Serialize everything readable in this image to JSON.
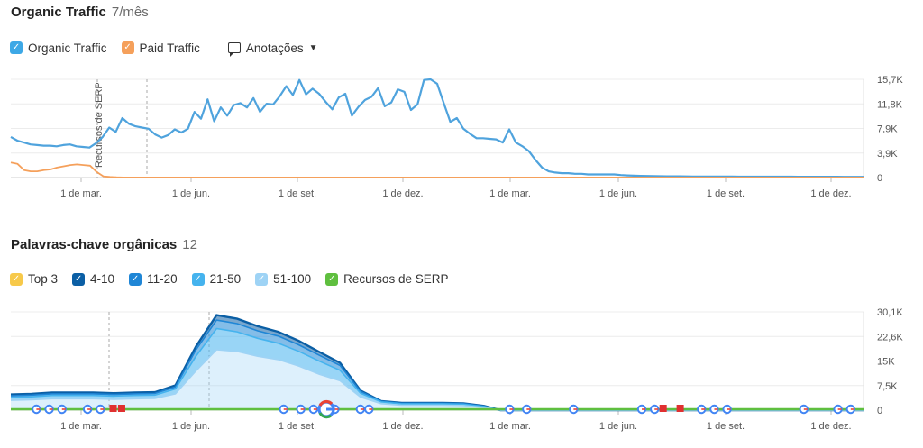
{
  "traffic_section": {
    "title": "Organic Traffic",
    "subtitle": "7/mês",
    "legend": [
      {
        "label": "Organic Traffic",
        "color": "#3da8e6"
      },
      {
        "label": "Paid Traffic",
        "color": "#f5a05b"
      }
    ],
    "annotations_label": "Anotações"
  },
  "keywords_section": {
    "title": "Palavras-chave orgânicas",
    "subtitle": "12",
    "legend": [
      {
        "label": "Top 3",
        "color": "#f7c94a"
      },
      {
        "label": "4-10",
        "color": "#0b5fa5"
      },
      {
        "label": "11-20",
        "color": "#1f86d6"
      },
      {
        "label": "21-50",
        "color": "#45b3ee"
      },
      {
        "label": "51-100",
        "color": "#9ed3f5"
      },
      {
        "label": "Recursos de SERP",
        "color": "#5fbf3f"
      }
    ]
  },
  "chart_data": [
    {
      "type": "line",
      "x_ticks": [
        "1 de mar.",
        "1 de jun.",
        "1 de set.",
        "1 de dez.",
        "1 de mar.",
        "1 de jun.",
        "1 de set.",
        "1 de dez."
      ],
      "y_ticks": [
        "0",
        "3,9K",
        "7,9K",
        "11,8K",
        "15,7K"
      ],
      "ylim": [
        0,
        15700
      ],
      "marker_label": "Recursos de SERP",
      "series": [
        {
          "name": "Organic Traffic",
          "color": "#4fa3dd",
          "values": [
            6500,
            5900,
            5600,
            5300,
            5200,
            5100,
            5100,
            5000,
            5200,
            5300,
            5000,
            4900,
            4800,
            5500,
            6500,
            8000,
            7300,
            9500,
            8600,
            8200,
            8000,
            7800,
            6900,
            6400,
            6800,
            7700,
            7200,
            7800,
            10500,
            9400,
            12500,
            9000,
            11200,
            9900,
            11600,
            11900,
            11200,
            12700,
            10500,
            11800,
            11700,
            13000,
            14600,
            13200,
            15600,
            13300,
            14200,
            13400,
            12100,
            10900,
            12800,
            13400,
            9900,
            11300,
            12400,
            12900,
            14300,
            11400,
            12000,
            14100,
            13700,
            10800,
            11700,
            15600,
            15700,
            15000,
            11900,
            8900,
            9500,
            7800,
            7000,
            6300,
            6300,
            6200,
            6100,
            5600,
            7700,
            5600,
            5000,
            4200,
            2800,
            1600,
            1000,
            800,
            700,
            700,
            600,
            600,
            500,
            500,
            500,
            500,
            500,
            400,
            350,
            300,
            280,
            260,
            240,
            220,
            200,
            200,
            200,
            190,
            180,
            180,
            170,
            170,
            160,
            160,
            160,
            150,
            150,
            150,
            150,
            140,
            140,
            140,
            140,
            140,
            130,
            130,
            130,
            130,
            130,
            130,
            130,
            120,
            120,
            120,
            120
          ]
        },
        {
          "name": "Paid Traffic",
          "color": "#f5a05b",
          "values": [
            2400,
            2200,
            1200,
            1000,
            1000,
            1200,
            1300,
            1600,
            1800,
            2000,
            2100,
            2000,
            1900,
            900,
            200,
            100,
            50,
            20,
            20,
            20,
            20,
            20,
            20,
            20,
            20,
            20,
            20,
            20,
            20,
            20,
            20,
            20,
            20,
            20,
            20,
            20,
            20,
            20,
            20,
            20,
            20,
            20,
            20,
            20,
            20,
            20,
            20,
            20,
            20,
            20,
            20,
            20,
            20,
            20,
            20,
            20,
            20,
            20,
            20,
            20,
            20,
            20,
            20,
            20,
            20,
            20,
            20,
            20,
            20,
            20,
            20,
            20,
            20,
            20,
            20,
            20,
            20,
            20,
            20,
            20,
            20,
            20,
            20,
            20,
            20,
            20,
            20,
            20,
            20,
            20,
            20,
            20,
            20,
            20,
            20,
            20,
            20,
            20,
            20,
            20,
            20,
            20,
            20,
            20,
            20,
            20,
            20,
            20,
            20,
            20,
            20,
            20,
            20,
            20,
            20,
            20,
            20,
            20,
            20,
            20,
            20,
            20,
            20,
            20,
            20,
            20,
            20,
            20,
            20,
            20
          ]
        }
      ]
    },
    {
      "type": "area",
      "x_ticks": [
        "1 de mar.",
        "1 de jun.",
        "1 de set.",
        "1 de dez.",
        "1 de mar.",
        "1 de jun.",
        "1 de set.",
        "1 de dez."
      ],
      "y_ticks": [
        "0",
        "7,5K",
        "15K",
        "22,6K",
        "30,1K"
      ],
      "ylim": [
        0,
        30100
      ],
      "stacked": true,
      "series": [
        {
          "name": "51-100",
          "color": "#9ed3f5",
          "values": [
            3000,
            3200,
            3500,
            3500,
            3500,
            3300,
            3500,
            3600,
            5000,
            12000,
            18500,
            18000,
            16500,
            15500,
            13500,
            11000,
            9000,
            4000,
            2000,
            1500,
            1500,
            1500,
            1400,
            800,
            0,
            0,
            0,
            0,
            0,
            0,
            0,
            0,
            0,
            0,
            0,
            0,
            0,
            0,
            0,
            0,
            0,
            0,
            0,
            0,
            0,
            0,
            0
          ]
        },
        {
          "name": "21-50",
          "color": "#45b3ee",
          "values": [
            900,
            900,
            1000,
            1000,
            1000,
            1000,
            1000,
            1000,
            1500,
            4500,
            6500,
            6000,
            5500,
            5000,
            4500,
            4000,
            3200,
            1200,
            500,
            400,
            400,
            400,
            400,
            300,
            0,
            0,
            0,
            0,
            0,
            0,
            0,
            0,
            0,
            0,
            0,
            0,
            0,
            0,
            0,
            0,
            0,
            0,
            0,
            0,
            0,
            0,
            0
          ]
        },
        {
          "name": "11-20",
          "color": "#1f86d6",
          "values": [
            500,
            500,
            500,
            500,
            500,
            500,
            500,
            500,
            600,
            2000,
            2600,
            2500,
            2300,
            2200,
            2000,
            1800,
            1500,
            500,
            200,
            200,
            200,
            200,
            200,
            100,
            0,
            0,
            0,
            0,
            0,
            0,
            0,
            0,
            0,
            0,
            0,
            0,
            0,
            0,
            0,
            0,
            0,
            0,
            0,
            0,
            0,
            0,
            0
          ]
        },
        {
          "name": "4-10",
          "color": "#0b5fa5",
          "values": [
            400,
            400,
            400,
            400,
            400,
            400,
            400,
            400,
            500,
            1000,
            1500,
            1500,
            1400,
            1300,
            1200,
            1000,
            800,
            300,
            100,
            100,
            100,
            100,
            100,
            100,
            0,
            0,
            0,
            0,
            0,
            0,
            0,
            0,
            0,
            0,
            0,
            0,
            0,
            0,
            0,
            0,
            0,
            0,
            0,
            0,
            0,
            0,
            0
          ]
        },
        {
          "name": "Top 3",
          "color": "#f7c94a",
          "values": [
            0,
            0,
            0,
            0,
            0,
            0,
            0,
            0,
            0,
            0,
            0,
            0,
            0,
            0,
            0,
            0,
            0,
            0,
            0,
            0,
            0,
            0,
            0,
            0,
            0,
            0,
            0,
            0,
            0,
            0,
            0,
            0,
            0,
            0,
            0,
            0,
            0,
            0,
            0,
            0,
            0,
            0,
            0,
            0,
            0,
            0,
            0
          ]
        }
      ],
      "serp_line_color": "#5fbf3f",
      "serp_markers": {
        "google_icon_positions_frac": [
          0.03,
          0.045,
          0.06,
          0.09,
          0.105,
          0.32,
          0.34,
          0.355,
          0.38,
          0.41,
          0.42,
          0.585,
          0.605,
          0.66,
          0.74,
          0.755,
          0.81,
          0.825,
          0.84,
          0.93,
          0.97,
          0.985
        ],
        "big_google_frac": 0.37,
        "flag_positions_frac": [
          0.12,
          0.13,
          0.765,
          0.785
        ]
      }
    }
  ]
}
